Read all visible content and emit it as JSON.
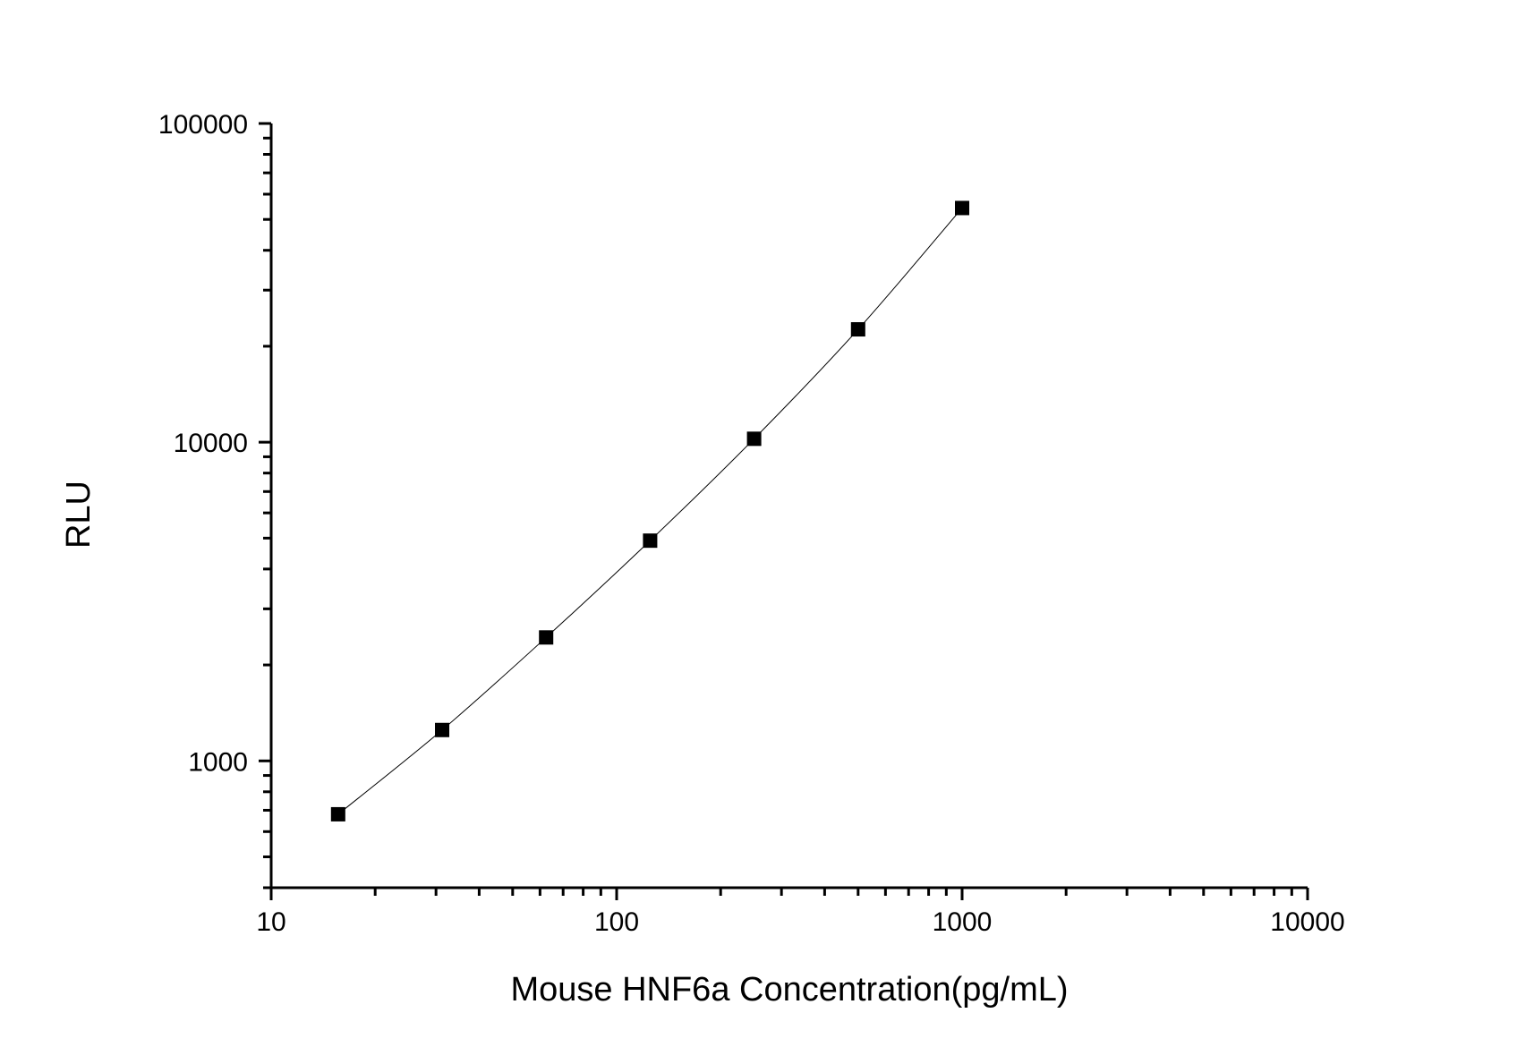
{
  "chart_data": {
    "type": "scatter",
    "title": "",
    "xlabel": "Mouse HNF6a Concentration(pg/mL)",
    "ylabel": "RLU",
    "x_scale": "log",
    "y_scale": "log",
    "xlim": [
      10,
      10000
    ],
    "ylim": [
      400,
      100000
    ],
    "x_ticks": [
      10,
      100,
      1000,
      10000
    ],
    "x_tick_labels": [
      "10",
      "100",
      "1000",
      "10000"
    ],
    "y_ticks": [
      1000,
      10000,
      100000
    ],
    "y_tick_labels": [
      "1000",
      "10000",
      "100000"
    ],
    "grid": false,
    "fit_line": true,
    "marker": "square",
    "color": "#000000",
    "series": [
      {
        "x": [
          15.625,
          31.25,
          62.5,
          125,
          250,
          500,
          1000
        ],
        "y": [
          680,
          1250,
          2440,
          4910,
          10250,
          22600,
          54300
        ]
      }
    ]
  }
}
